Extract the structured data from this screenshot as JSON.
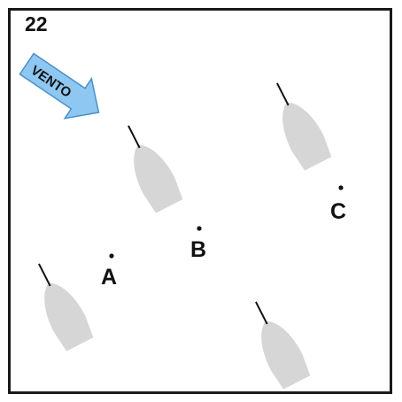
{
  "question_number": "22",
  "wind": {
    "label": "VENTO",
    "color": "#8ec8f2",
    "stroke": "#4a8fc8",
    "icon": "wind-arrow-icon"
  },
  "boat_color": "#d6d6d6",
  "boats": [
    {
      "id": "boat-1",
      "icon": "sailboat-icon"
    },
    {
      "id": "boat-2",
      "icon": "sailboat-icon"
    },
    {
      "id": "boat-3",
      "icon": "sailboat-icon"
    },
    {
      "id": "boat-4",
      "icon": "sailboat-icon"
    }
  ],
  "points": [
    {
      "label": "A"
    },
    {
      "label": "B"
    },
    {
      "label": "C"
    }
  ]
}
